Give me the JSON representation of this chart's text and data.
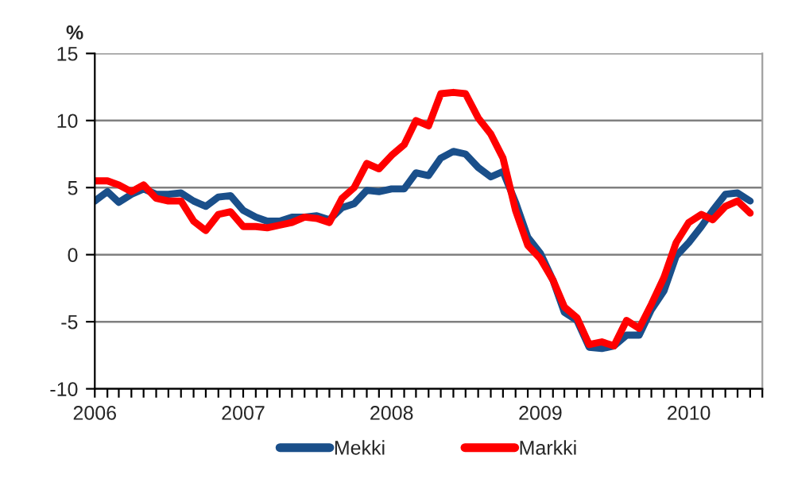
{
  "chart_data": {
    "type": "line",
    "ylabel": "%",
    "x": [
      "2006-01",
      "2006-02",
      "2006-03",
      "2006-04",
      "2006-05",
      "2006-06",
      "2006-07",
      "2006-08",
      "2006-09",
      "2006-10",
      "2006-11",
      "2006-12",
      "2007-01",
      "2007-02",
      "2007-03",
      "2007-04",
      "2007-05",
      "2007-06",
      "2007-07",
      "2007-08",
      "2007-09",
      "2007-10",
      "2007-11",
      "2007-12",
      "2008-01",
      "2008-02",
      "2008-03",
      "2008-04",
      "2008-05",
      "2008-06",
      "2008-07",
      "2008-08",
      "2008-09",
      "2008-10",
      "2008-11",
      "2008-12",
      "2009-01",
      "2009-02",
      "2009-03",
      "2009-04",
      "2009-05",
      "2009-06",
      "2009-07",
      "2009-08",
      "2009-09",
      "2009-10",
      "2009-11",
      "2009-12",
      "2010-01",
      "2010-02",
      "2010-03",
      "2010-04",
      "2010-05",
      "2010-06"
    ],
    "series": [
      {
        "name": "Mekki",
        "color": "#1a4f8a",
        "values": [
          4.0,
          4.7,
          3.9,
          4.5,
          4.9,
          4.5,
          4.5,
          4.6,
          4.0,
          3.6,
          4.3,
          4.4,
          3.3,
          2.8,
          2.5,
          2.5,
          2.8,
          2.8,
          2.9,
          2.6,
          3.5,
          3.8,
          4.8,
          4.7,
          4.9,
          4.9,
          6.1,
          5.9,
          7.2,
          7.7,
          7.5,
          6.5,
          5.8,
          6.2,
          3.9,
          1.3,
          0.1,
          -1.9,
          -4.3,
          -4.9,
          -6.9,
          -7.0,
          -6.8,
          -6.0,
          -6.0,
          -4.1,
          -2.7,
          -0.1,
          0.9,
          2.1,
          3.3,
          4.5,
          4.6,
          4.0
        ]
      },
      {
        "name": "Markki",
        "color": "#ff0000",
        "values": [
          5.5,
          5.5,
          5.2,
          4.7,
          5.2,
          4.2,
          4.0,
          4.0,
          2.5,
          1.8,
          3.0,
          3.2,
          2.1,
          2.1,
          2.0,
          2.2,
          2.4,
          2.8,
          2.7,
          2.4,
          4.2,
          5.0,
          6.8,
          6.4,
          7.4,
          8.2,
          10.0,
          9.6,
          12.0,
          12.1,
          12.0,
          10.2,
          9.0,
          7.2,
          3.3,
          0.7,
          -0.3,
          -1.9,
          -3.9,
          -4.7,
          -6.7,
          -6.5,
          -6.8,
          -4.9,
          -5.5,
          -3.7,
          -1.7,
          0.9,
          2.4,
          3.0,
          2.6,
          3.6,
          4.0,
          3.1
        ]
      }
    ],
    "xlim": [
      "2006-01",
      "2010-07"
    ],
    "xticks": [
      {
        "value": "2006-01",
        "label": "2006"
      },
      {
        "value": "2006-02",
        "label": null
      },
      {
        "value": "2006-03",
        "label": null
      },
      {
        "value": "2006-04",
        "label": null
      },
      {
        "value": "2006-05",
        "label": null
      },
      {
        "value": "2006-06",
        "label": null
      },
      {
        "value": "2006-07",
        "label": null
      },
      {
        "value": "2006-08",
        "label": null
      },
      {
        "value": "2006-09",
        "label": null
      },
      {
        "value": "2006-10",
        "label": null
      },
      {
        "value": "2006-11",
        "label": null
      },
      {
        "value": "2006-12",
        "label": null
      },
      {
        "value": "2007-01",
        "label": "2007"
      },
      {
        "value": "2007-02",
        "label": null
      },
      {
        "value": "2007-03",
        "label": null
      },
      {
        "value": "2007-04",
        "label": null
      },
      {
        "value": "2007-05",
        "label": null
      },
      {
        "value": "2007-06",
        "label": null
      },
      {
        "value": "2007-07",
        "label": null
      },
      {
        "value": "2007-08",
        "label": null
      },
      {
        "value": "2007-09",
        "label": null
      },
      {
        "value": "2007-10",
        "label": null
      },
      {
        "value": "2007-11",
        "label": null
      },
      {
        "value": "2007-12",
        "label": null
      },
      {
        "value": "2008-01",
        "label": "2008"
      },
      {
        "value": "2008-02",
        "label": null
      },
      {
        "value": "2008-03",
        "label": null
      },
      {
        "value": "2008-04",
        "label": null
      },
      {
        "value": "2008-05",
        "label": null
      },
      {
        "value": "2008-06",
        "label": null
      },
      {
        "value": "2008-07",
        "label": null
      },
      {
        "value": "2008-08",
        "label": null
      },
      {
        "value": "2008-09",
        "label": null
      },
      {
        "value": "2008-10",
        "label": null
      },
      {
        "value": "2008-11",
        "label": null
      },
      {
        "value": "2008-12",
        "label": null
      },
      {
        "value": "2009-01",
        "label": "2009"
      },
      {
        "value": "2009-02",
        "label": null
      },
      {
        "value": "2009-03",
        "label": null
      },
      {
        "value": "2009-04",
        "label": null
      },
      {
        "value": "2009-05",
        "label": null
      },
      {
        "value": "2009-06",
        "label": null
      },
      {
        "value": "2009-07",
        "label": null
      },
      {
        "value": "2009-08",
        "label": null
      },
      {
        "value": "2009-09",
        "label": null
      },
      {
        "value": "2009-10",
        "label": null
      },
      {
        "value": "2009-11",
        "label": null
      },
      {
        "value": "2009-12",
        "label": null
      },
      {
        "value": "2010-01",
        "label": "2010"
      },
      {
        "value": "2010-02",
        "label": null
      },
      {
        "value": "2010-03",
        "label": null
      },
      {
        "value": "2010-04",
        "label": null
      },
      {
        "value": "2010-05",
        "label": null
      },
      {
        "value": "2010-06",
        "label": null
      },
      {
        "value": "2010-07",
        "label": null
      }
    ],
    "ylim": [
      -10,
      15
    ],
    "yticks": [
      -10,
      -5,
      0,
      5,
      10,
      15
    ],
    "grid": "y",
    "legend": "bottom",
    "marker": "none",
    "line_style": "solid"
  }
}
